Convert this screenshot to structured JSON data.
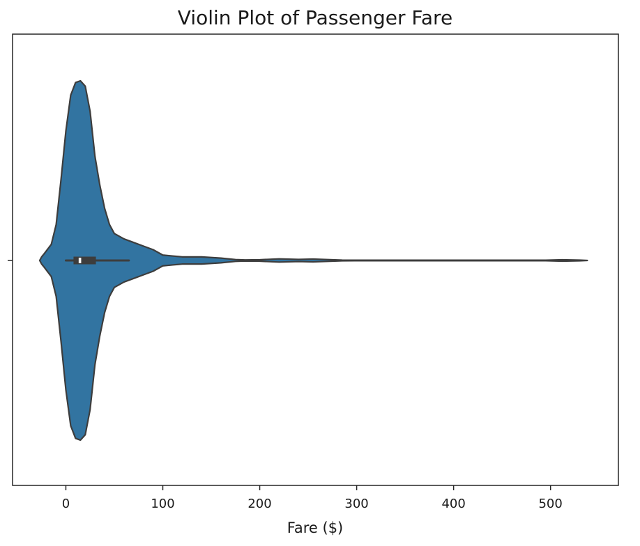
{
  "chart_data": {
    "type": "violin",
    "title": "Violin Plot of Passenger Fare",
    "xlabel": "Fare ($)",
    "ylabel": "",
    "xlim": [
      -55,
      570
    ],
    "xticks": [
      0,
      100,
      200,
      300,
      400,
      500
    ],
    "xtick_labels": [
      "0",
      "100",
      "200",
      "300",
      "400",
      "500"
    ],
    "grid": false,
    "orientation": "horizontal",
    "series": [
      {
        "density_profile": [
          [
            -27,
            0.0
          ],
          [
            -25,
            0.02
          ],
          [
            -22,
            0.04
          ],
          [
            -15,
            0.09
          ],
          [
            -10,
            0.2
          ],
          [
            -5,
            0.45
          ],
          [
            0,
            0.72
          ],
          [
            5,
            0.92
          ],
          [
            10,
            0.99
          ],
          [
            15,
            1.0
          ],
          [
            20,
            0.97
          ],
          [
            25,
            0.83
          ],
          [
            30,
            0.58
          ],
          [
            35,
            0.42
          ],
          [
            40,
            0.29
          ],
          [
            45,
            0.2
          ],
          [
            50,
            0.15
          ],
          [
            60,
            0.12
          ],
          [
            70,
            0.1
          ],
          [
            80,
            0.08
          ],
          [
            90,
            0.06
          ],
          [
            100,
            0.03
          ],
          [
            110,
            0.025
          ],
          [
            120,
            0.02
          ],
          [
            140,
            0.02
          ],
          [
            160,
            0.013
          ],
          [
            175,
            0.005
          ],
          [
            185,
            0.003
          ],
          [
            200,
            0.004
          ],
          [
            220,
            0.009
          ],
          [
            240,
            0.006
          ],
          [
            255,
            0.008
          ],
          [
            270,
            0.005
          ],
          [
            285,
            0.002
          ],
          [
            300,
            0.0015
          ],
          [
            400,
            0.0015
          ],
          [
            495,
            0.0015
          ],
          [
            512,
            0.004
          ],
          [
            530,
            0.002
          ],
          [
            538,
            0.0
          ]
        ],
        "quartile_1": 7.9,
        "median": 14.5,
        "quartile_3": 31,
        "whisker_low": 0,
        "whisker_high": 65,
        "color": "#3274a1",
        "edge_color": "#3d3d3d"
      }
    ]
  }
}
